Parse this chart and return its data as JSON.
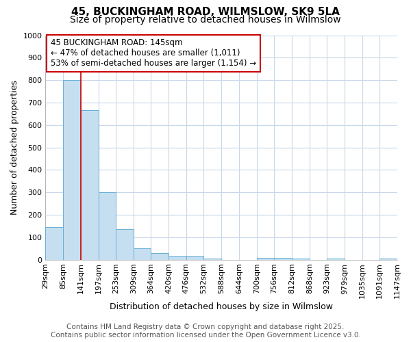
{
  "title": "45, BUCKINGHAM ROAD, WILMSLOW, SK9 5LA",
  "subtitle": "Size of property relative to detached houses in Wilmslow",
  "xlabel": "Distribution of detached houses by size in Wilmslow",
  "ylabel": "Number of detached properties",
  "bin_edges": [
    29,
    85,
    141,
    197,
    253,
    309,
    364,
    420,
    476,
    532,
    588,
    644,
    700,
    756,
    812,
    868,
    923,
    979,
    1035,
    1091,
    1147
  ],
  "bar_heights": [
    145,
    800,
    665,
    300,
    135,
    52,
    30,
    18,
    18,
    5,
    0,
    0,
    8,
    8,
    5,
    0,
    5,
    0,
    0,
    5
  ],
  "bar_color": "#c5dff0",
  "bar_edge_color": "#6aaed6",
  "red_line_x": 141,
  "red_line_color": "#cc0000",
  "ylim": [
    0,
    1000
  ],
  "yticks": [
    0,
    100,
    200,
    300,
    400,
    500,
    600,
    700,
    800,
    900,
    1000
  ],
  "annotation_text_line1": "45 BUCKINGHAM ROAD: 145sqm",
  "annotation_text_line2": "← 47% of detached houses are smaller (1,011)",
  "annotation_text_line3": "53% of semi-detached houses are larger (1,154) →",
  "annotation_box_color": "#cc0000",
  "footer_line1": "Contains HM Land Registry data © Crown copyright and database right 2025.",
  "footer_line2": "Contains public sector information licensed under the Open Government Licence v3.0.",
  "bg_color": "#ffffff",
  "plot_bg_color": "#ffffff",
  "grid_color": "#c8d8e8",
  "title_fontsize": 11,
  "subtitle_fontsize": 10,
  "axis_label_fontsize": 9,
  "tick_fontsize": 8,
  "annotation_fontsize": 8.5,
  "footer_fontsize": 7.5
}
